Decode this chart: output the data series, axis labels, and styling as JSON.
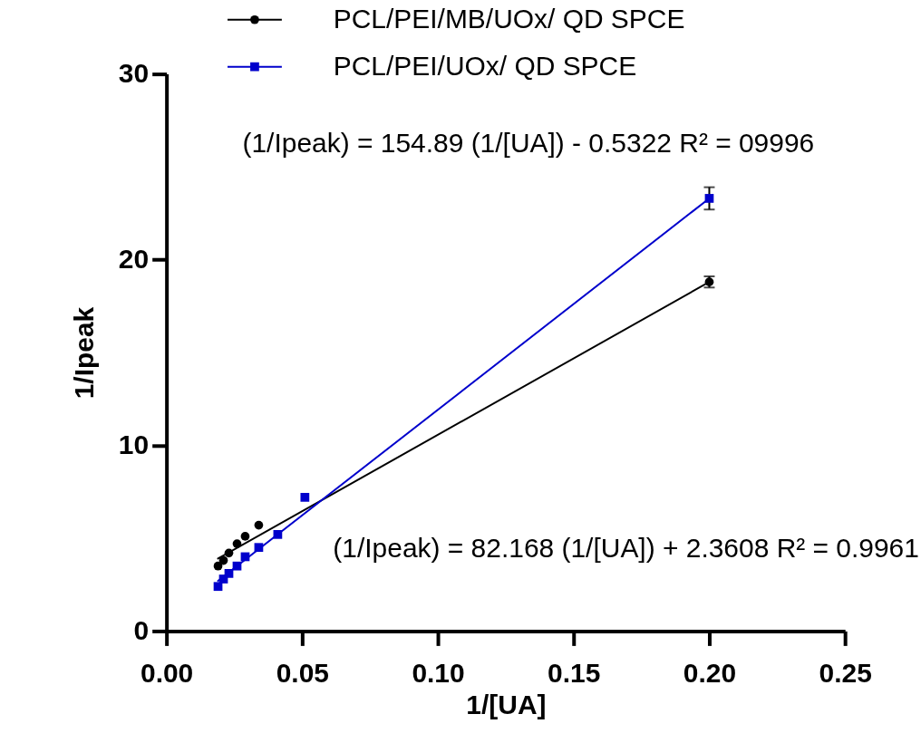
{
  "chart_data": {
    "type": "scatter",
    "xlabel": "1/[UA]",
    "ylabel": "1/Ipeak",
    "xlim": [
      0,
      0.25
    ],
    "xticks": [
      {
        "value": 0,
        "label": "0.00"
      },
      0.05,
      {
        "value": 0.1,
        "label": "0.10"
      },
      0.15,
      {
        "value": 0.2,
        "label": "0.20"
      },
      0.25
    ],
    "ylim": [
      0,
      30
    ],
    "yticks": [
      0,
      10,
      20,
      30
    ],
    "legend": "top",
    "series": [
      {
        "name": "PCL/PEI/MB/UOx/ QD SPCE",
        "color": "#000000",
        "marker": "circle",
        "x": [
          0.019,
          0.021,
          0.023,
          0.026,
          0.029,
          0.034,
          0.2
        ],
        "values": [
          3.5,
          3.8,
          4.2,
          4.7,
          5.1,
          5.7,
          18.8
        ],
        "errors": [
          null,
          null,
          null,
          null,
          null,
          null,
          0.3
        ]
      },
      {
        "name": "PCL/PEI/UOx/ QD SPCE",
        "color": "#0000cc",
        "marker": "square",
        "x": [
          0.019,
          0.021,
          0.023,
          0.026,
          0.029,
          0.034,
          0.041,
          0.051,
          0.2
        ],
        "values": [
          2.4,
          2.8,
          3.1,
          3.5,
          4.0,
          4.5,
          5.2,
          7.2,
          23.3
        ],
        "errors": [
          null,
          null,
          null,
          null,
          null,
          null,
          null,
          null,
          0.6
        ]
      },
      {
        "type": "line",
        "color": "#000000",
        "marker": "none",
        "line_style": "solid",
        "x": [
          0.019,
          0.2
        ],
        "values": [
          3.9,
          18.8
        ]
      },
      {
        "type": "line",
        "color": "#0000cc",
        "marker": "none",
        "line_style": "solid",
        "x": [
          0.019,
          0.2
        ],
        "values": [
          2.7,
          23.3
        ]
      }
    ],
    "annotations": [
      "(1/Ipeak) = 154.89 (1/[UA]) - 0.5322 R² = 09996",
      "(1/Ipeak) = 82.168 (1/[UA]) + 2.3608 R² = 0.9961"
    ]
  }
}
